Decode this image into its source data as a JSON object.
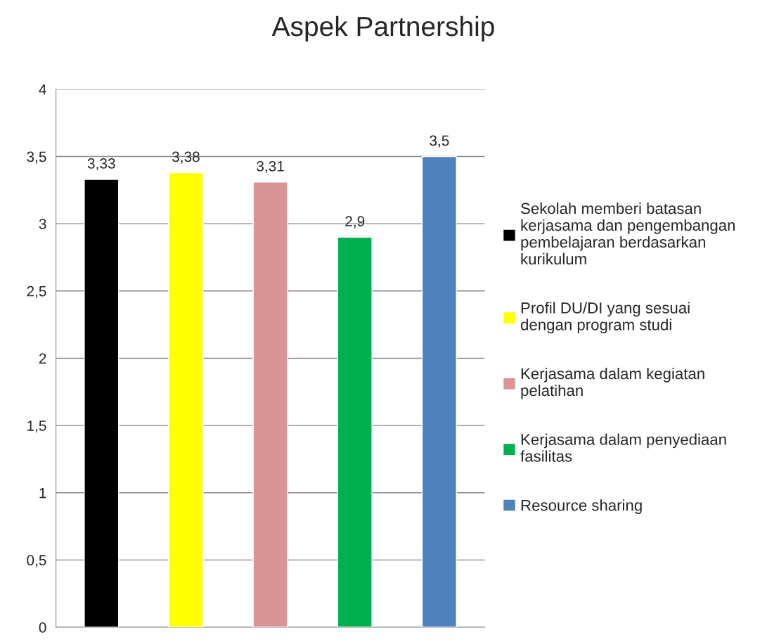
{
  "chart_data": {
    "type": "bar",
    "title": "Aspek Partnership",
    "categories": [
      null
    ],
    "series": [
      {
        "name": "Sekolah memberi batasan kerjasama dan pengembangan pembelajaran berdasarkan kurikulum",
        "color": "#000000",
        "values": [
          3.33
        ],
        "value_labels": [
          "3,33"
        ]
      },
      {
        "name": "Profil DU/DI yang sesuai dengan program studi",
        "color": "#ffff00",
        "values": [
          3.38
        ],
        "value_labels": [
          "3,38"
        ]
      },
      {
        "name": "Kerjasama dalam kegiatan pelatihan",
        "color": "#d99594",
        "values": [
          3.31
        ],
        "value_labels": [
          "3,31"
        ]
      },
      {
        "name": "Kerjasama dalam penyediaan fasilitas",
        "color": "#00b050",
        "values": [
          2.9
        ],
        "value_labels": [
          "2,9"
        ]
      },
      {
        "name": "Resource sharing",
        "color": "#4f81bd",
        "values": [
          3.5
        ],
        "value_labels": [
          "3,5"
        ]
      }
    ],
    "ylim": [
      0,
      4
    ],
    "yticks": [
      0,
      {
        "value": 0.5,
        "label": "0,5"
      },
      1,
      {
        "value": 1.5,
        "label": "1,5"
      },
      2,
      {
        "value": 2.5,
        "label": "2,5"
      },
      3,
      {
        "value": 3.5,
        "label": "3,5"
      },
      4
    ],
    "grid": "y",
    "legend": "right"
  }
}
